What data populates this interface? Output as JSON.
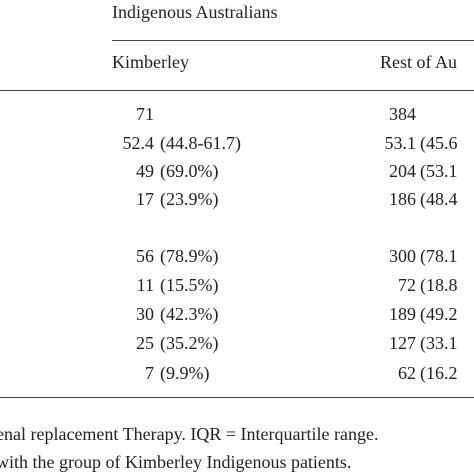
{
  "table": {
    "group_header": "Indigenous Australians",
    "columns": [
      "Kimberley",
      "Rest of Au"
    ],
    "rows": [
      {
        "k": "71",
        "k_paren": "",
        "r": "384",
        "r_paren": ""
      },
      {
        "k": "52.4",
        "k_paren": "(44.8-61.7)",
        "r": "53.1",
        "r_paren": "(45.6"
      },
      {
        "k": "49",
        "k_paren": "(69.0%)",
        "r": "204",
        "r_paren": "(53.1"
      },
      {
        "k": "17",
        "k_paren": "(23.9%)",
        "r": "186",
        "r_paren": "(48.4"
      },
      {
        "k": "",
        "k_paren": "",
        "r": "",
        "r_paren": ""
      },
      {
        "k": "56",
        "k_paren": "(78.9%)",
        "r": "300",
        "r_paren": "(78.1"
      },
      {
        "k": "11",
        "k_paren": "(15.5%)",
        "r": "72",
        "r_paren": "(18.8"
      },
      {
        "k": "30",
        "k_paren": "(42.3%)",
        "r": "189",
        "r_paren": "(49.2"
      },
      {
        "k": "25",
        "k_paren": "(35.2%)",
        "r": "127",
        "r_paren": "(33.1"
      },
      {
        "k": "7",
        "k_paren": "(9.9%)",
        "r": "62",
        "r_paren": "(16.2"
      }
    ]
  },
  "footnote": {
    "line1": "enal replacement Therapy. IQR = Interquartile range.",
    "line2": "with the group of Kimberley Indigenous patients."
  }
}
